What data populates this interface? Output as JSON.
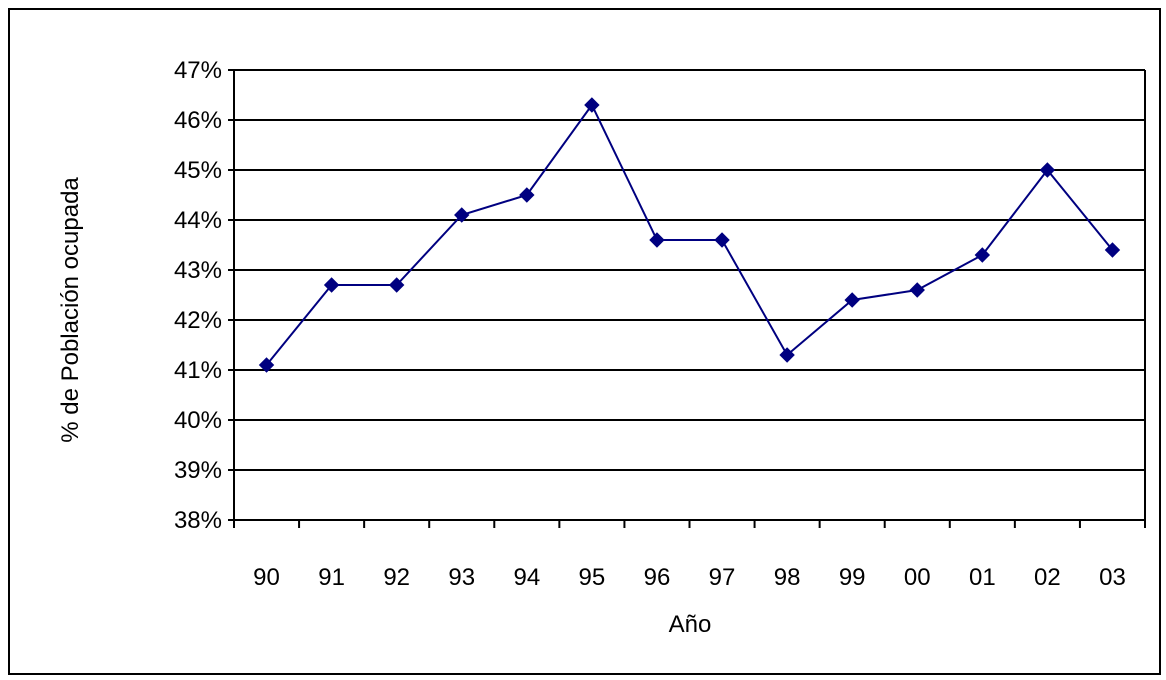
{
  "chart_data": {
    "type": "line",
    "title": "",
    "xlabel": "Año",
    "ylabel": "% de Población ocupada",
    "categories": [
      "90",
      "91",
      "92",
      "93",
      "94",
      "95",
      "96",
      "97",
      "98",
      "99",
      "00",
      "01",
      "02",
      "03"
    ],
    "series": [
      {
        "values": [
          41.1,
          42.7,
          42.7,
          44.1,
          44.5,
          46.3,
          43.6,
          43.6,
          41.3,
          42.4,
          42.6,
          43.3,
          45.0,
          43.4
        ]
      }
    ],
    "ylim": [
      38,
      47
    ],
    "y_ticks": [
      38,
      39,
      40,
      41,
      42,
      43,
      44,
      45,
      46,
      47
    ],
    "y_tick_suffix": "%",
    "grid": true,
    "legend": "none",
    "colors": {
      "line": "#000080",
      "marker": "#000080",
      "grid": "#000000",
      "axis": "#000000"
    }
  }
}
